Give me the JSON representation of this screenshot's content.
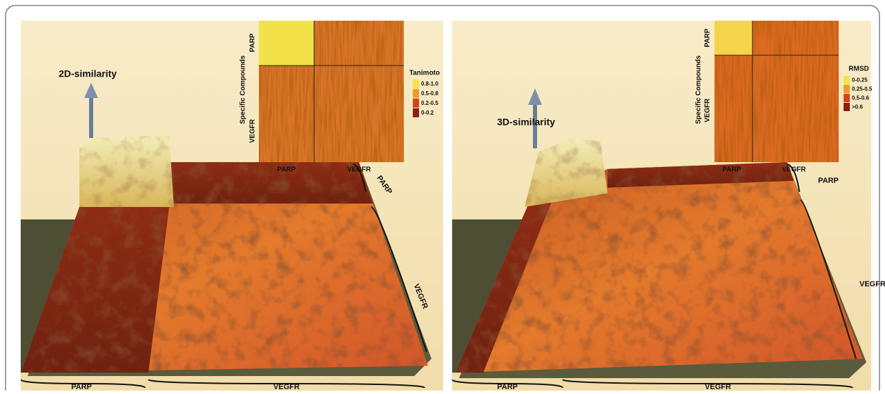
{
  "panels": [
    {
      "title": "2D-similarity",
      "heatmap": {
        "y_title": "Specific Compounds",
        "row_labels": [
          "PARP",
          "VEGFR"
        ],
        "col_labels": [
          "PARP",
          "VEGFR"
        ],
        "legend_title": "Tanimoto",
        "legend": [
          {
            "label": "0.8-1.0",
            "color": "#f6e24a"
          },
          {
            "label": "0.5-0.8",
            "color": "#ef9a2a"
          },
          {
            "label": "0.2-0.5",
            "color": "#d9401c"
          },
          {
            "label": "0-0.2",
            "color": "#8e1d12"
          }
        ]
      },
      "landscape": {
        "right_labels": [
          "PARP",
          "VEGFR"
        ],
        "bottom_labels": [
          "PARP",
          "VEGFR"
        ]
      }
    },
    {
      "title": "3D-similarity",
      "heatmap": {
        "y_title": "Specific Compounds",
        "row_labels": [
          "PARP",
          "VEGFR"
        ],
        "col_labels": [
          "PARP",
          "VEGFR"
        ],
        "legend_title": "RMSD",
        "legend": [
          {
            "label": "0-0.25",
            "color": "#f6e24a"
          },
          {
            "label": "0.25-0.5",
            "color": "#ef9a2a"
          },
          {
            "label": "0.5-0.6",
            "color": "#d9401c"
          },
          {
            "label": ">0.6",
            "color": "#8e1d12"
          }
        ]
      },
      "landscape": {
        "right_labels": [
          "PARP",
          "VEGFR"
        ],
        "bottom_labels": [
          "PARP",
          "VEGFR"
        ]
      }
    }
  ]
}
